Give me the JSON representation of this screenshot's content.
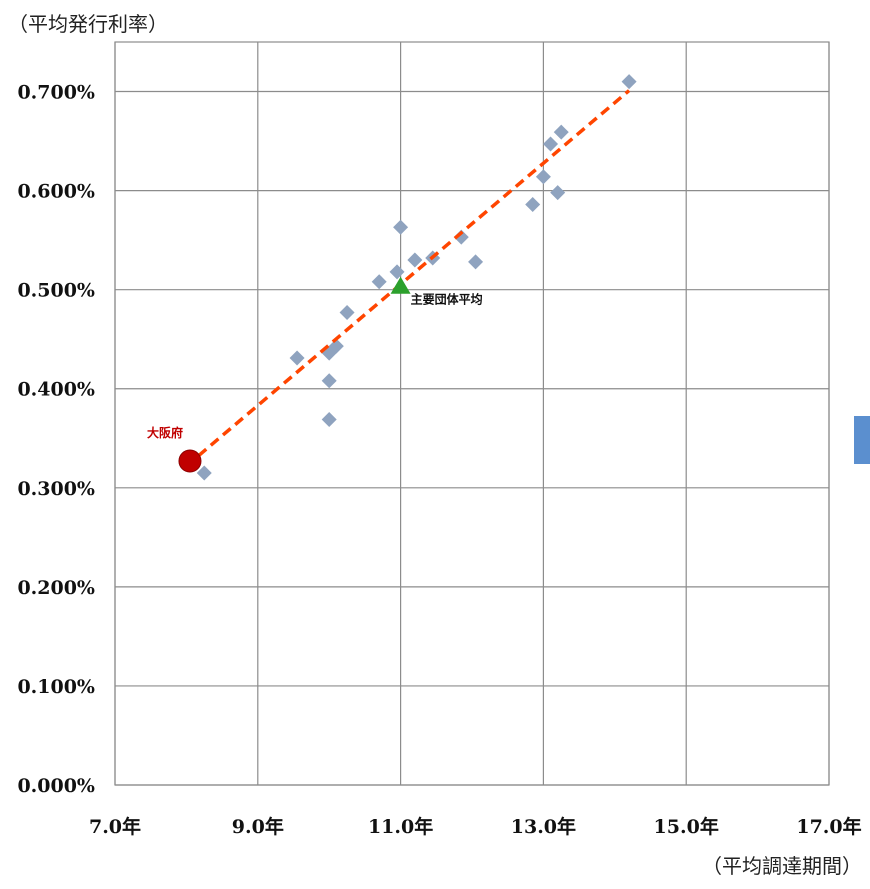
{
  "chart_data": {
    "type": "scatter",
    "ylabel": "（平均発行利率）",
    "xlabel": "（平均調達期間）",
    "xlim": [
      7.0,
      17.0
    ],
    "ylim": [
      0.0,
      0.7
    ],
    "x_ticks": [
      "7.0年",
      "9.0年",
      "11.0年",
      "13.0年",
      "15.0年",
      "17.0年"
    ],
    "y_ticks": [
      "0.000%",
      "0.100%",
      "0.200%",
      "0.300%",
      "0.400%",
      "0.500%",
      "0.600%",
      "0.700%"
    ],
    "grid": true,
    "series": [
      {
        "marker": "diamond",
        "color": "#8fa3bf",
        "points": [
          [
            8.25,
            0.315
          ],
          [
            9.55,
            0.431
          ],
          [
            10.0,
            0.369
          ],
          [
            10.0,
            0.408
          ],
          [
            10.0,
            0.436
          ],
          [
            10.1,
            0.443
          ],
          [
            10.25,
            0.477
          ],
          [
            10.7,
            0.508
          ],
          [
            10.95,
            0.518
          ],
          [
            11.0,
            0.563
          ],
          [
            11.2,
            0.53
          ],
          [
            11.45,
            0.532
          ],
          [
            11.85,
            0.553
          ],
          [
            12.05,
            0.528
          ],
          [
            12.85,
            0.586
          ],
          [
            13.0,
            0.614
          ],
          [
            13.1,
            0.647
          ],
          [
            13.2,
            0.598
          ],
          [
            13.25,
            0.659
          ],
          [
            14.2,
            0.71
          ]
        ]
      }
    ],
    "highlights": [
      {
        "label": "大阪府",
        "x": 8.05,
        "y": 0.327,
        "marker": "circle",
        "color": "#c00000"
      },
      {
        "label": "主要団体平均",
        "x": 11.0,
        "y": 0.503,
        "marker": "triangle",
        "color": "#2ca02c"
      }
    ],
    "trendline": {
      "x": [
        8.0,
        14.2
      ],
      "y": [
        0.322,
        0.701
      ],
      "color": "#ff4500",
      "style": "dashed"
    }
  }
}
